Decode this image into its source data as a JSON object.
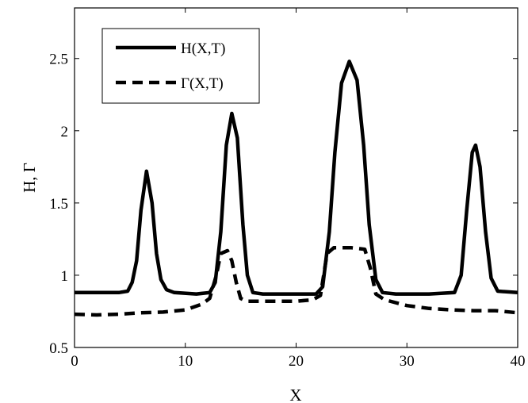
{
  "chart_data": {
    "type": "line",
    "title": "",
    "xlabel": "X",
    "ylabel": "H, Γ",
    "xlim": [
      0,
      40
    ],
    "ylim": [
      0.5,
      2.85
    ],
    "xticks": [
      0,
      10,
      20,
      30,
      40
    ],
    "yticks": [
      0.5,
      1,
      1.5,
      2,
      2.5
    ],
    "xtick_labels": [
      "0",
      "10",
      "20",
      "30",
      "40"
    ],
    "ytick_labels": [
      "0.5",
      "1",
      "1.5",
      "2",
      "2.5"
    ],
    "grid": false,
    "legend_position": "top-left",
    "series": [
      {
        "name": "H(X,T)",
        "style": "solid",
        "color": "#000000",
        "points": [
          [
            0,
            0.88
          ],
          [
            2,
            0.88
          ],
          [
            4,
            0.88
          ],
          [
            4.8,
            0.89
          ],
          [
            5.2,
            0.95
          ],
          [
            5.6,
            1.1
          ],
          [
            6.0,
            1.45
          ],
          [
            6.5,
            1.72
          ],
          [
            7.0,
            1.5
          ],
          [
            7.4,
            1.15
          ],
          [
            7.8,
            0.97
          ],
          [
            8.3,
            0.9
          ],
          [
            9,
            0.88
          ],
          [
            11,
            0.87
          ],
          [
            12.2,
            0.88
          ],
          [
            12.7,
            0.95
          ],
          [
            13.2,
            1.3
          ],
          [
            13.7,
            1.9
          ],
          [
            14.2,
            2.12
          ],
          [
            14.7,
            1.95
          ],
          [
            15.2,
            1.35
          ],
          [
            15.6,
            1.0
          ],
          [
            16.1,
            0.88
          ],
          [
            17,
            0.87
          ],
          [
            20,
            0.87
          ],
          [
            21.8,
            0.87
          ],
          [
            22.4,
            0.92
          ],
          [
            23.0,
            1.3
          ],
          [
            23.5,
            1.85
          ],
          [
            24.1,
            2.33
          ],
          [
            24.8,
            2.48
          ],
          [
            25.5,
            2.35
          ],
          [
            26.1,
            1.9
          ],
          [
            26.6,
            1.35
          ],
          [
            27.2,
            0.97
          ],
          [
            27.8,
            0.88
          ],
          [
            29,
            0.87
          ],
          [
            32,
            0.87
          ],
          [
            34.3,
            0.88
          ],
          [
            34.9,
            1.0
          ],
          [
            35.4,
            1.45
          ],
          [
            35.9,
            1.85
          ],
          [
            36.2,
            1.9
          ],
          [
            36.6,
            1.75
          ],
          [
            37.1,
            1.3
          ],
          [
            37.6,
            0.98
          ],
          [
            38.2,
            0.89
          ],
          [
            40,
            0.88
          ]
        ]
      },
      {
        "name": "Γ(X,T)",
        "style": "dashed",
        "color": "#000000",
        "points": [
          [
            0,
            0.73
          ],
          [
            2,
            0.725
          ],
          [
            4,
            0.73
          ],
          [
            6,
            0.74
          ],
          [
            8,
            0.745
          ],
          [
            10,
            0.76
          ],
          [
            11.5,
            0.8
          ],
          [
            12.2,
            0.84
          ],
          [
            12.8,
            1.0
          ],
          [
            13.2,
            1.15
          ],
          [
            13.8,
            1.17
          ],
          [
            14.2,
            1.1
          ],
          [
            14.6,
            0.95
          ],
          [
            15.0,
            0.84
          ],
          [
            15.5,
            0.82
          ],
          [
            17,
            0.82
          ],
          [
            20,
            0.82
          ],
          [
            21.5,
            0.83
          ],
          [
            22.2,
            0.86
          ],
          [
            22.8,
            1.15
          ],
          [
            23.4,
            1.19
          ],
          [
            25,
            1.19
          ],
          [
            26.2,
            1.18
          ],
          [
            26.7,
            1.05
          ],
          [
            27.2,
            0.87
          ],
          [
            28,
            0.83
          ],
          [
            30,
            0.79
          ],
          [
            32,
            0.77
          ],
          [
            34,
            0.76
          ],
          [
            36,
            0.755
          ],
          [
            38,
            0.755
          ],
          [
            40,
            0.74
          ]
        ]
      }
    ]
  }
}
